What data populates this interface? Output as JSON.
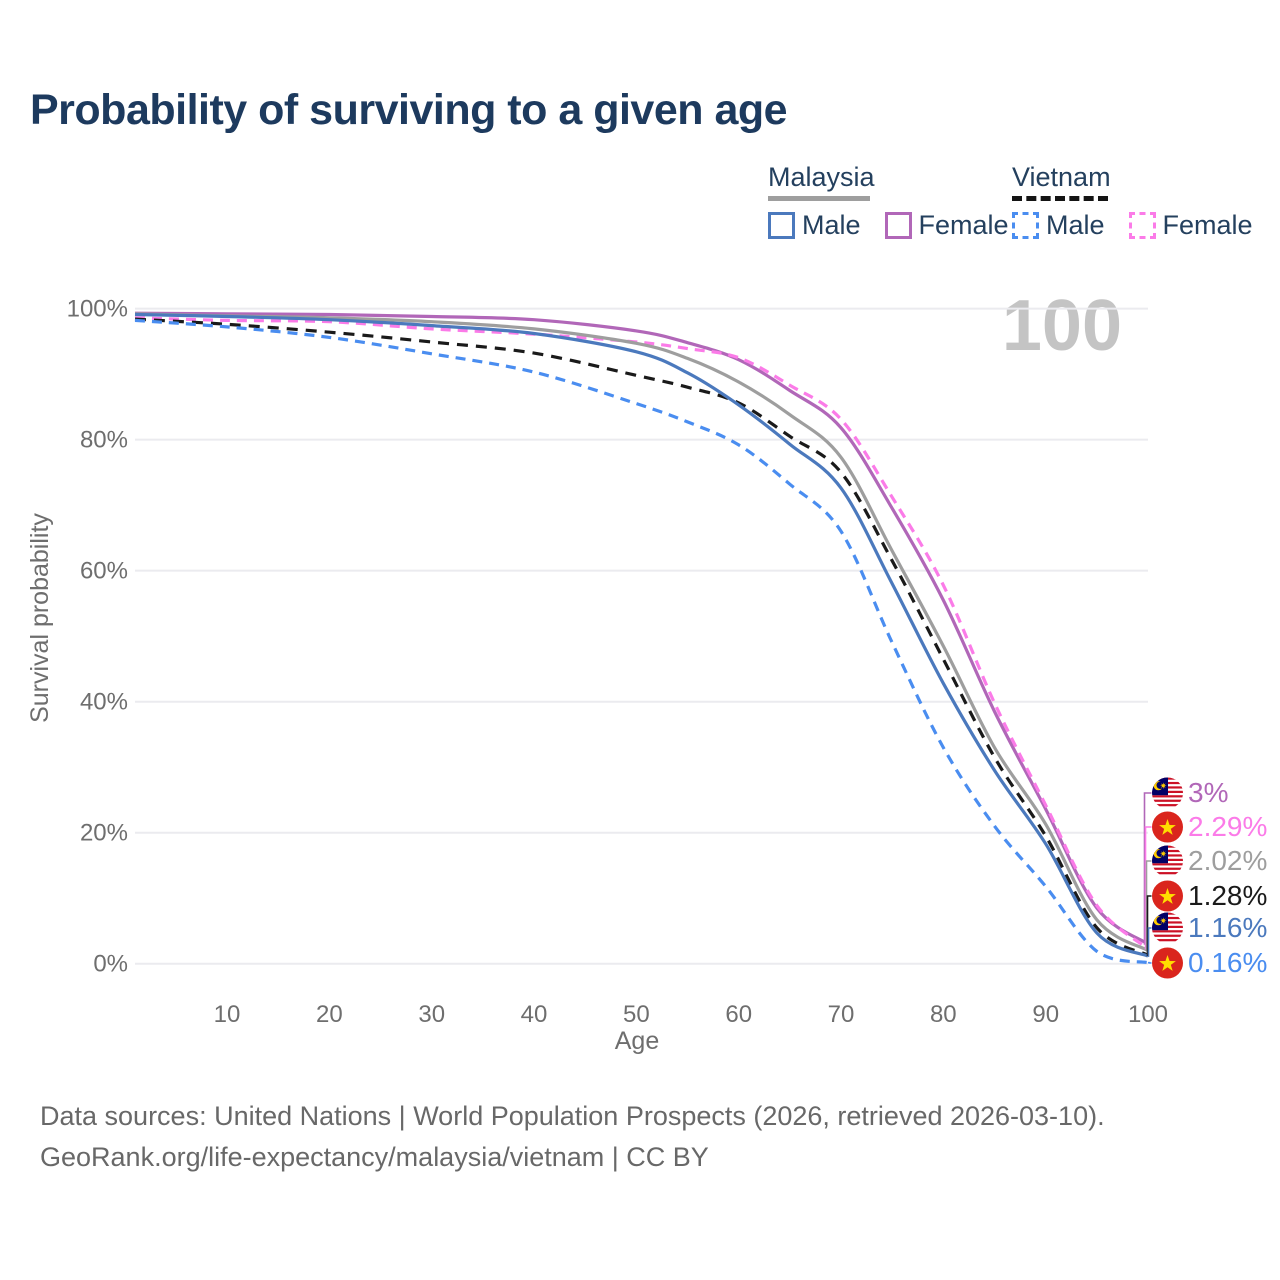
{
  "title": "Probability of surviving to a given age",
  "watermark_age": "100",
  "legend": {
    "groups": [
      {
        "label": "Malaysia",
        "line_style": "solid",
        "underline_color": "#9e9e9e",
        "items": [
          {
            "label": "Male",
            "color": "#4b79bd"
          },
          {
            "label": "Female",
            "color": "#b167b8"
          }
        ]
      },
      {
        "label": "Vietnam",
        "line_style": "dashed",
        "underline_color": "#141414",
        "items": [
          {
            "label": "Male",
            "color": "#4a8df0"
          },
          {
            "label": "Female",
            "color": "#fb7be8"
          }
        ]
      }
    ]
  },
  "chart_data": {
    "type": "line",
    "title": "Probability of surviving to a given age",
    "xlabel": "Age",
    "ylabel": "Survival probability",
    "xlim": [
      0,
      100
    ],
    "ylim": [
      0,
      100
    ],
    "grid": "horizontal",
    "legend_position": "top-right",
    "x_ticks": [
      10,
      20,
      30,
      40,
      50,
      60,
      70,
      80,
      90,
      100
    ],
    "y_tick_values": [
      0,
      20,
      40,
      60,
      80,
      100
    ],
    "y_tick_labels": [
      "0%",
      "20%",
      "40%",
      "60%",
      "80%",
      "100%"
    ],
    "x": [
      0,
      10,
      20,
      30,
      40,
      50,
      55,
      60,
      65,
      70,
      75,
      80,
      85,
      90,
      95,
      100
    ],
    "series": [
      {
        "name": "Malaysia Female",
        "country": "Malaysia",
        "sex": "Female",
        "flag": "malaysia",
        "color": "#b167b8",
        "dash": "solid",
        "end_label": "3%",
        "values": [
          99.3,
          99.2,
          99.1,
          98.8,
          98.3,
          96.6,
          94.8,
          92.2,
          87.5,
          81.8,
          69.5,
          55.5,
          38.5,
          23.6,
          8.5,
          3.0
        ]
      },
      {
        "name": "Vietnam Female",
        "country": "Vietnam",
        "sex": "Female",
        "flag": "vietnam",
        "color": "#fb7be8",
        "dash": "dashed",
        "end_label": "2.29%",
        "values": [
          98.6,
          98.2,
          98.0,
          96.9,
          96.1,
          94.9,
          93.9,
          92.5,
          88.3,
          83.1,
          71.2,
          57.8,
          39.8,
          24.2,
          8.9,
          2.29
        ]
      },
      {
        "name": "Malaysia (both sexes)",
        "country": "Malaysia",
        "sex": "Both",
        "flag": "malaysia",
        "color": "#9e9e9e",
        "dash": "solid",
        "end_label": "2.02%",
        "values": [
          99.2,
          98.9,
          98.6,
          98.0,
          96.9,
          94.7,
          92.4,
          88.8,
          83.8,
          77.3,
          63.0,
          48.5,
          33.0,
          21.3,
          6.7,
          2.02
        ]
      },
      {
        "name": "Vietnam (both sexes)",
        "country": "Vietnam",
        "sex": "Both",
        "flag": "vietnam",
        "color": "#1a1a1a",
        "dash": "dashed",
        "end_label": "1.28%",
        "values": [
          98.4,
          97.6,
          96.4,
          94.9,
          93.2,
          89.8,
          88.0,
          85.6,
          80.5,
          75.0,
          61.5,
          46.5,
          31.5,
          19.5,
          5.5,
          1.28
        ]
      },
      {
        "name": "Malaysia Male",
        "country": "Malaysia",
        "sex": "Male",
        "flag": "malaysia",
        "color": "#4b79bd",
        "dash": "solid",
        "end_label": "1.16%",
        "values": [
          99.1,
          98.8,
          98.3,
          97.4,
          96.2,
          93.4,
          90.2,
          85.3,
          79.3,
          72.6,
          58.0,
          42.8,
          29.5,
          18.3,
          4.7,
          1.16
        ]
      },
      {
        "name": "Vietnam Male",
        "country": "Vietnam",
        "sex": "Male",
        "flag": "vietnam",
        "color": "#4a8df0",
        "dash": "dashed",
        "end_label": "0.16%",
        "values": [
          98.2,
          97.2,
          95.6,
          93.1,
          90.3,
          85.5,
          82.7,
          79.2,
          73.2,
          66.0,
          49.0,
          33.0,
          21.0,
          11.8,
          1.9,
          0.16
        ]
      }
    ]
  },
  "footer": {
    "line1": "Data sources: United Nations | World Population Prospects (2026, retrieved 2026-03-10).",
    "line2": "GeoRank.org/life-expectancy/malaysia/vietnam | CC BY"
  }
}
